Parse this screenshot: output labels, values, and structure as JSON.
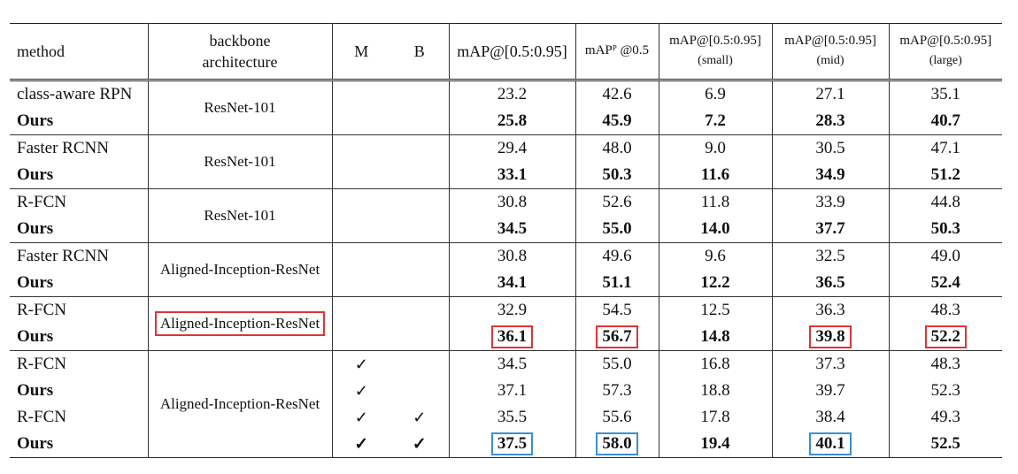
{
  "header": {
    "method": "method",
    "backbone_line1": "backbone",
    "backbone_line2": "architecture",
    "m": "M",
    "b": "B",
    "map": "mAP@[0.5:0.95]",
    "map50": "mAPᴾ @0.5",
    "map_small_line1": "mAP@[0.5:0.95]",
    "map_small_line2": "(small)",
    "map_mid_line1": "mAP@[0.5:0.95]",
    "map_mid_line2": "(mid)",
    "map_large_line1": "mAP@[0.5:0.95]",
    "map_large_line2": "(large)"
  },
  "groups": [
    {
      "backbone": "ResNet-101",
      "rows": [
        {
          "method": "class-aware RPN",
          "m": "",
          "b": "",
          "map": "23.2",
          "map50": "42.6",
          "small": "6.9",
          "mid": "27.1",
          "large": "35.1"
        },
        {
          "method": "Ours",
          "m": "",
          "b": "",
          "map": "25.8",
          "map50": "45.9",
          "small": "7.2",
          "mid": "28.3",
          "large": "40.7"
        }
      ]
    },
    {
      "backbone": "ResNet-101",
      "rows": [
        {
          "method": "Faster RCNN",
          "m": "",
          "b": "",
          "map": "29.4",
          "map50": "48.0",
          "small": "9.0",
          "mid": "30.5",
          "large": "47.1"
        },
        {
          "method": "Ours",
          "m": "",
          "b": "",
          "map": "33.1",
          "map50": "50.3",
          "small": "11.6",
          "mid": "34.9",
          "large": "51.2"
        }
      ]
    },
    {
      "backbone": "ResNet-101",
      "rows": [
        {
          "method": "R-FCN",
          "m": "",
          "b": "",
          "map": "30.8",
          "map50": "52.6",
          "small": "11.8",
          "mid": "33.9",
          "large": "44.8"
        },
        {
          "method": "Ours",
          "m": "",
          "b": "",
          "map": "34.5",
          "map50": "55.0",
          "small": "14.0",
          "mid": "37.7",
          "large": "50.3"
        }
      ]
    },
    {
      "backbone": "Aligned-Inception-ResNet",
      "rows": [
        {
          "method": "Faster RCNN",
          "m": "",
          "b": "",
          "map": "30.8",
          "map50": "49.6",
          "small": "9.6",
          "mid": "32.5",
          "large": "49.0"
        },
        {
          "method": "Ours",
          "m": "",
          "b": "",
          "map": "34.1",
          "map50": "51.1",
          "small": "12.2",
          "mid": "36.5",
          "large": "52.4"
        }
      ]
    },
    {
      "backbone": "Aligned-Inception-ResNet",
      "rows": [
        {
          "method": "R-FCN",
          "m": "",
          "b": "",
          "map": "32.9",
          "map50": "54.5",
          "small": "12.5",
          "mid": "36.3",
          "large": "48.3"
        },
        {
          "method": "Ours",
          "m": "",
          "b": "",
          "map": "36.1",
          "map50": "56.7",
          "small": "14.8",
          "mid": "39.8",
          "large": "52.2"
        }
      ]
    },
    {
      "backbone": "Aligned-Inception-ResNet",
      "rows": [
        {
          "method": "R-FCN",
          "m": "✓",
          "b": "",
          "map": "34.5",
          "map50": "55.0",
          "small": "16.8",
          "mid": "37.3",
          "large": "48.3"
        },
        {
          "method": "Ours",
          "m": "✓",
          "b": "",
          "map": "37.1",
          "map50": "57.3",
          "small": "18.8",
          "mid": "39.7",
          "large": "52.3"
        },
        {
          "method": "R-FCN",
          "m": "✓",
          "b": "✓",
          "map": "35.5",
          "map50": "55.6",
          "small": "17.8",
          "mid": "38.4",
          "large": "49.3"
        },
        {
          "method": "Ours",
          "m": "✓",
          "b": "✓",
          "map": "37.5",
          "map50": "58.0",
          "small": "19.4",
          "mid": "40.1",
          "large": "52.5"
        }
      ]
    }
  ],
  "highlight_colors": {
    "red": "#e03434",
    "blue": "#3a8fd6"
  }
}
